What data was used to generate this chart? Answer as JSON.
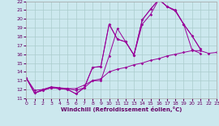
{
  "xlabel": "Windchill (Refroidissement éolien,°C)",
  "background_color": "#cce8ee",
  "grid_color": "#aacccc",
  "line_color": "#990099",
  "xmin": 0,
  "xmax": 23,
  "ymin": 11,
  "ymax": 22,
  "s1x": [
    0,
    1,
    2,
    3,
    4,
    5,
    6,
    7,
    8,
    9,
    10,
    11,
    12,
    13,
    14,
    15,
    16,
    17,
    18,
    19,
    20,
    21
  ],
  "s1y": [
    13.3,
    11.6,
    11.9,
    12.2,
    12.1,
    12.0,
    11.5,
    12.2,
    14.5,
    14.6,
    19.4,
    17.7,
    17.4,
    15.9,
    19.9,
    21.1,
    22.2,
    21.4,
    20.9,
    19.4,
    18.1,
    16.6
  ],
  "s2x": [
    0,
    1,
    2,
    3,
    4,
    5,
    6,
    7,
    8,
    9,
    10,
    11,
    12,
    13,
    14,
    15,
    16,
    17,
    18,
    19,
    20,
    21
  ],
  "s2y": [
    13.3,
    11.6,
    12.0,
    12.3,
    12.2,
    12.1,
    12.1,
    12.5,
    13.0,
    13.0,
    15.8,
    18.9,
    17.4,
    15.9,
    19.4,
    20.5,
    22.2,
    21.4,
    21.0,
    19.4,
    16.5,
    16.1
  ],
  "s3x": [
    0,
    1,
    2,
    3,
    4,
    5,
    6,
    7,
    8,
    9,
    10,
    11,
    12,
    13,
    14,
    15,
    16,
    17,
    18,
    19,
    20,
    21
  ],
  "s3y": [
    13.3,
    11.6,
    11.9,
    12.2,
    12.1,
    12.0,
    11.5,
    12.2,
    14.5,
    14.6,
    19.4,
    17.7,
    17.4,
    15.9,
    19.9,
    21.1,
    22.2,
    21.4,
    20.9,
    19.4,
    18.1,
    16.6
  ],
  "s4x": [
    0,
    1,
    2,
    3,
    4,
    5,
    6,
    7,
    8,
    9,
    10,
    11,
    12,
    13,
    14,
    15,
    16,
    17,
    18,
    19,
    20,
    21,
    22,
    23
  ],
  "s4y": [
    13.3,
    11.9,
    12.0,
    12.2,
    12.1,
    12.1,
    11.9,
    12.2,
    13.0,
    13.2,
    14.0,
    14.3,
    14.5,
    14.8,
    15.0,
    15.3,
    15.5,
    15.8,
    16.0,
    16.2,
    16.4,
    16.4,
    16.1,
    16.2
  ]
}
